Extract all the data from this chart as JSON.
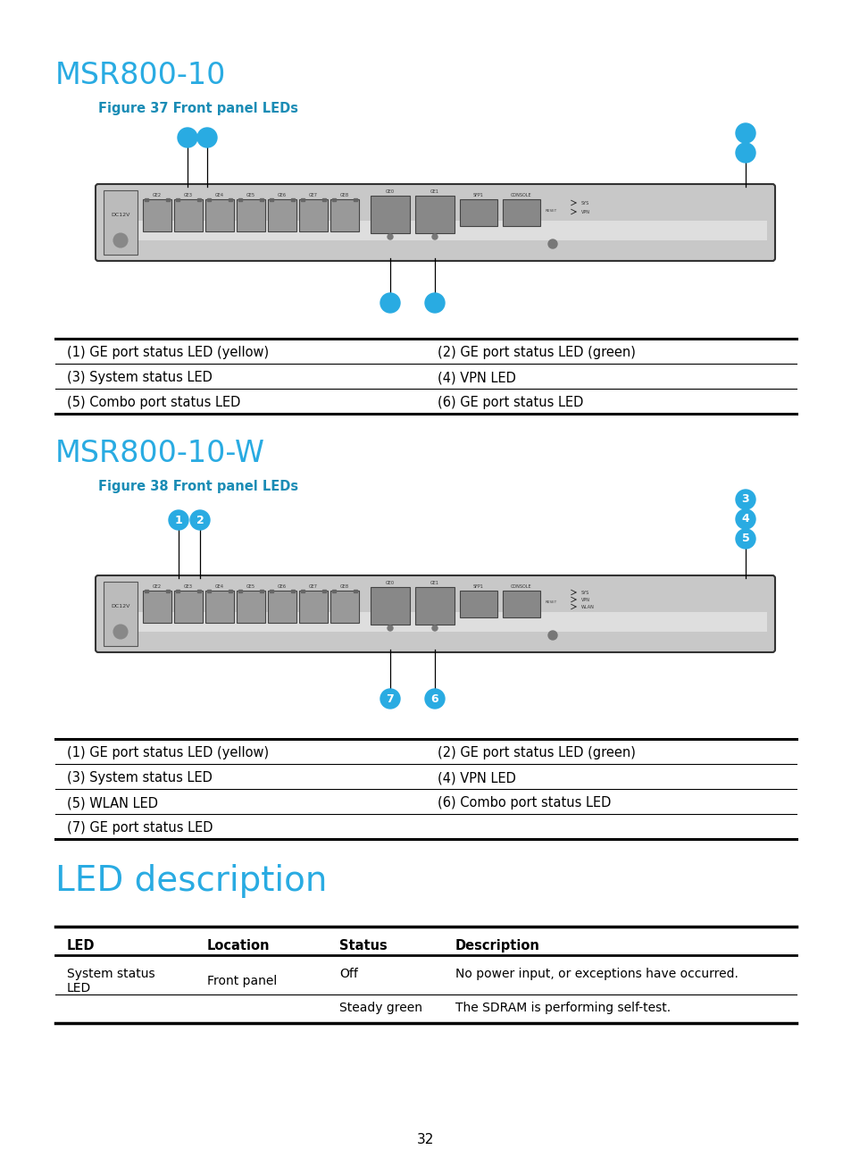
{
  "title1": "MSR800-10",
  "fig_label1": "Figure 37 Front panel LEDs",
  "table1_rows": [
    [
      "(1) GE port status LED (yellow)",
      "(2) GE port status LED (green)"
    ],
    [
      "(3) System status LED",
      "(4) VPN LED"
    ],
    [
      "(5) Combo port status LED",
      "(6) GE port status LED"
    ]
  ],
  "title2": "MSR800-10-W",
  "fig_label2": "Figure 38 Front panel LEDs",
  "table2_rows": [
    [
      "(1) GE port status LED (yellow)",
      "(2) GE port status LED (green)"
    ],
    [
      "(3) System status LED",
      "(4) VPN LED"
    ],
    [
      "(5) WLAN LED",
      "(6) Combo port status LED"
    ],
    [
      "(7) GE port status LED",
      ""
    ]
  ],
  "title3": "LED description",
  "led_table_headers": [
    "LED",
    "Location",
    "Status",
    "Description"
  ],
  "page_number": "32",
  "cyan_color": "#29ABE2",
  "fig_cap_color": "#1A8CB5",
  "bg_color": "#FFFFFF",
  "router_bg": "#E8E8E8",
  "router_border": "#555555",
  "port_bg": "#888888",
  "port_border": "#444444"
}
